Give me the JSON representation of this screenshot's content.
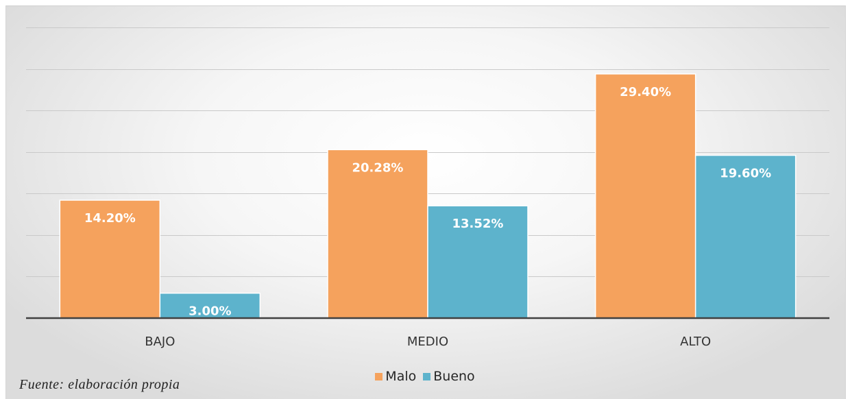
{
  "chart_data": {
    "type": "bar",
    "categories": [
      "BAJO",
      "MEDIO",
      "ALTO"
    ],
    "series": [
      {
        "name": "Malo",
        "values": [
          14.2,
          20.28,
          29.4
        ],
        "labels": [
          "14.20%",
          "20.28%",
          "29.40%"
        ],
        "color": "#F5A25D"
      },
      {
        "name": "Bueno",
        "values": [
          3.0,
          13.52,
          19.6
        ],
        "labels": [
          "3.00%",
          "13.52%",
          "19.60%"
        ],
        "color": "#5DB3CC"
      }
    ],
    "ylim": [
      0,
      35
    ],
    "grid": true,
    "legend_position": "bottom"
  },
  "legend": {
    "malo": "Malo",
    "bueno": "Bueno"
  },
  "source_note": "Fuente: elaboración propia"
}
